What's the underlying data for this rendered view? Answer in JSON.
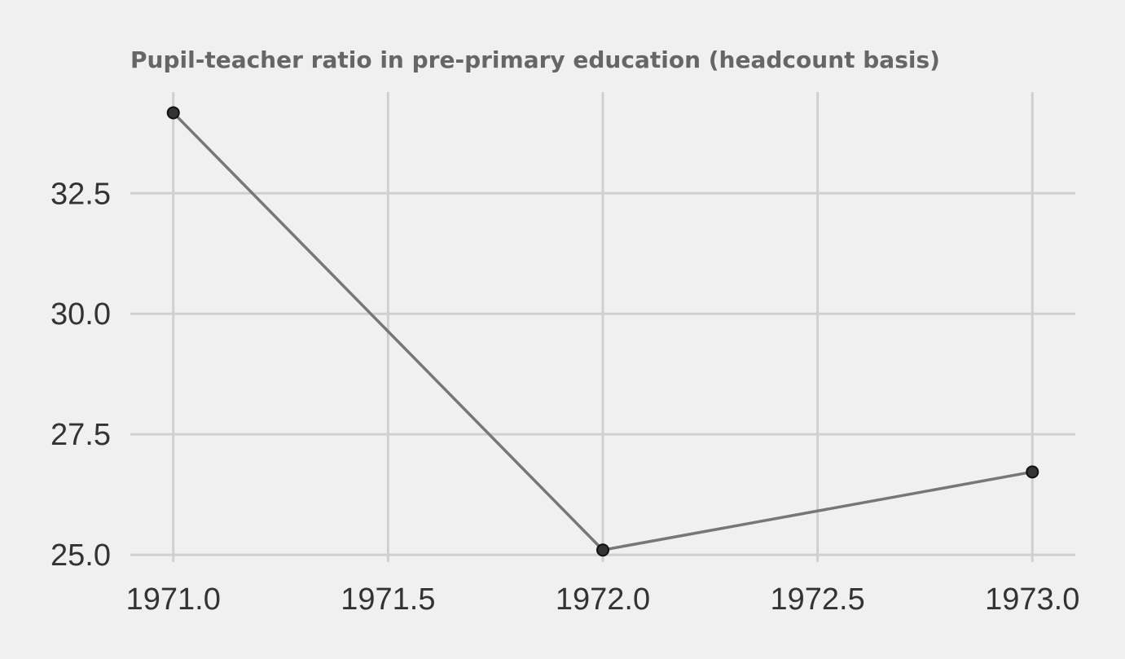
{
  "chart_data": {
    "type": "line",
    "title": "Pupil-teacher ratio in pre-primary education (headcount basis)",
    "xlabel": "",
    "ylabel": "",
    "x": [
      1971,
      1972,
      1973
    ],
    "series": [
      {
        "values": [
          34.17,
          25.1,
          26.72
        ]
      }
    ],
    "xlim": [
      1970.9,
      1973.1
    ],
    "ylim": [
      24.85,
      34.6
    ],
    "xticks": [
      1971.0,
      1971.5,
      1972.0,
      1972.5,
      1973.0
    ],
    "xtick_labels": [
      "1971.0",
      "1971.5",
      "1972.0",
      "1972.5",
      "1973.0"
    ],
    "yticks": [
      25.0,
      27.5,
      30.0,
      32.5
    ],
    "ytick_labels": [
      "25.0",
      "27.5",
      "30.0",
      "32.5"
    ],
    "grid": true,
    "colors": {
      "background": "#f0f0f0",
      "line": "#777777",
      "marker": "#333333",
      "grid": "#d0d0d0"
    }
  }
}
